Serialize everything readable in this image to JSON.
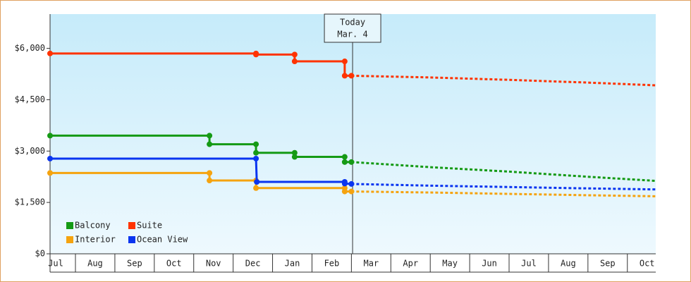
{
  "chart_data": {
    "type": "step-line",
    "xlim": [
      0.356,
      15.72
    ],
    "xticks": [
      {
        "value": 0.5,
        "label": "Jul"
      },
      {
        "value": 1.5,
        "label": "Aug"
      },
      {
        "value": 2.5,
        "label": "Sep"
      },
      {
        "value": 3.5,
        "label": "Oct"
      },
      {
        "value": 4.5,
        "label": "Nov"
      },
      {
        "value": 5.5,
        "label": "Dec"
      },
      {
        "value": 6.5,
        "label": "Jan"
      },
      {
        "value": 7.5,
        "label": "Feb"
      },
      {
        "value": 8.5,
        "label": "Mar"
      },
      {
        "value": 9.5,
        "label": "Apr"
      },
      {
        "value": 10.5,
        "label": "May"
      },
      {
        "value": 11.5,
        "label": "Jun"
      },
      {
        "value": 12.5,
        "label": "Jul"
      },
      {
        "value": 13.5,
        "label": "Aug"
      },
      {
        "value": 14.5,
        "label": "Sep"
      },
      {
        "value": 15.5,
        "label": "Oct"
      }
    ],
    "ylim": [
      0,
      7000
    ],
    "yticks": [
      {
        "value": 0,
        "label": "$0"
      },
      {
        "value": 1500,
        "label": "$1,500"
      },
      {
        "value": 3000,
        "label": "$3,000"
      },
      {
        "value": 4500,
        "label": "$4,500"
      },
      {
        "value": 6000,
        "label": "$6,000"
      }
    ],
    "legend": "bottom-left",
    "annotation": {
      "x": 8.03,
      "lines": [
        "Today",
        "Mar. 4"
      ]
    },
    "series": [
      {
        "name": "Balcony",
        "color": "#159a15",
        "x": [
          0.356,
          4.4,
          4.4,
          5.58,
          5.58,
          6.56,
          6.56,
          7.83,
          7.83,
          8.0
        ],
        "values": [
          3450,
          3450,
          3200,
          3200,
          2950,
          2950,
          2830,
          2830,
          2680,
          2680
        ],
        "forecast_x": [
          8.0,
          10,
          12,
          14,
          15.72
        ],
        "forecast_values": [
          2680,
          2530,
          2400,
          2250,
          2130
        ]
      },
      {
        "name": "Suite",
        "color": "#ff3300",
        "x": [
          0.356,
          5.58,
          5.58,
          6.56,
          6.56,
          7.83,
          7.83,
          8.0
        ],
        "values": [
          5850,
          5850,
          5820,
          5820,
          5620,
          5620,
          5200,
          5200
        ],
        "forecast_x": [
          8.0,
          10,
          12,
          14,
          15.72
        ],
        "forecast_values": [
          5200,
          5150,
          5080,
          5000,
          4920
        ]
      },
      {
        "name": "Interior",
        "color": "#f5a30f",
        "x": [
          0.356,
          4.4,
          4.4,
          5.58,
          5.58,
          7.83,
          7.83,
          8.0
        ],
        "values": [
          2360,
          2360,
          2140,
          2140,
          1920,
          1920,
          1820,
          1820
        ],
        "forecast_x": [
          8.0,
          10,
          12,
          14,
          15.72
        ],
        "forecast_values": [
          1820,
          1790,
          1750,
          1710,
          1680
        ]
      },
      {
        "name": "Ocean View",
        "color": "#0a35f0",
        "x": [
          0.356,
          5.58,
          5.6,
          7.83,
          7.83,
          8.0
        ],
        "values": [
          2780,
          2780,
          2100,
          2100,
          2050,
          2040
        ],
        "forecast_x": [
          8.0,
          10,
          12,
          14,
          15.72
        ],
        "forecast_values": [
          2040,
          1990,
          1950,
          1910,
          1880
        ]
      }
    ]
  }
}
